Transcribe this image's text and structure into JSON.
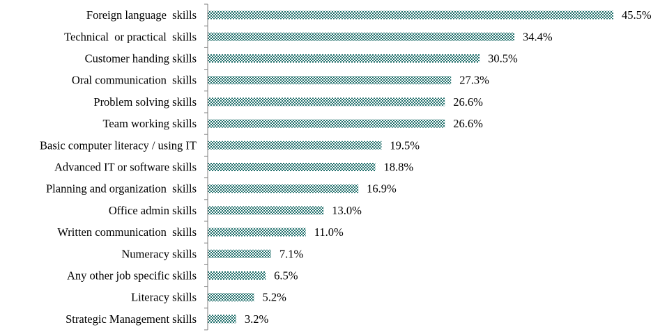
{
  "chart_data": {
    "type": "bar",
    "orientation": "horizontal",
    "title": "",
    "xlabel": "",
    "ylabel": "",
    "xlim": [
      0,
      45.5
    ],
    "grid": false,
    "legend": "none",
    "bar_pattern": "checkered",
    "colors": {
      "bar_light": "#ffffff",
      "bar_dark": "#1f6f6b",
      "axis": "#7f7f7f",
      "text": "#000000"
    },
    "categories": [
      "Foreign language  skills",
      "Technical  or practical  skills",
      "Customer handing skills",
      "Oral communication  skills",
      "Problem solving skills",
      "Team working skills",
      "Basic computer literacy / using IT",
      "Advanced IT or software skills",
      "Planning and organization  skills",
      "Office admin skills",
      "Written communication  skills",
      "Numeracy skills",
      "Any other job specific skills",
      "Literacy skills",
      "Strategic Management skills"
    ],
    "values": [
      45.5,
      34.4,
      30.5,
      27.3,
      26.6,
      26.6,
      19.5,
      18.8,
      16.9,
      13.0,
      11.0,
      7.1,
      6.5,
      5.2,
      3.2
    ],
    "value_labels": [
      "45.5%",
      "34.4%",
      "30.5%",
      "27.3%",
      "26.6%",
      "26.6%",
      "19.5%",
      "18.8%",
      "16.9%",
      "13.0%",
      "11.0%",
      "7.1%",
      "6.5%",
      "5.2%",
      "3.2%"
    ]
  }
}
